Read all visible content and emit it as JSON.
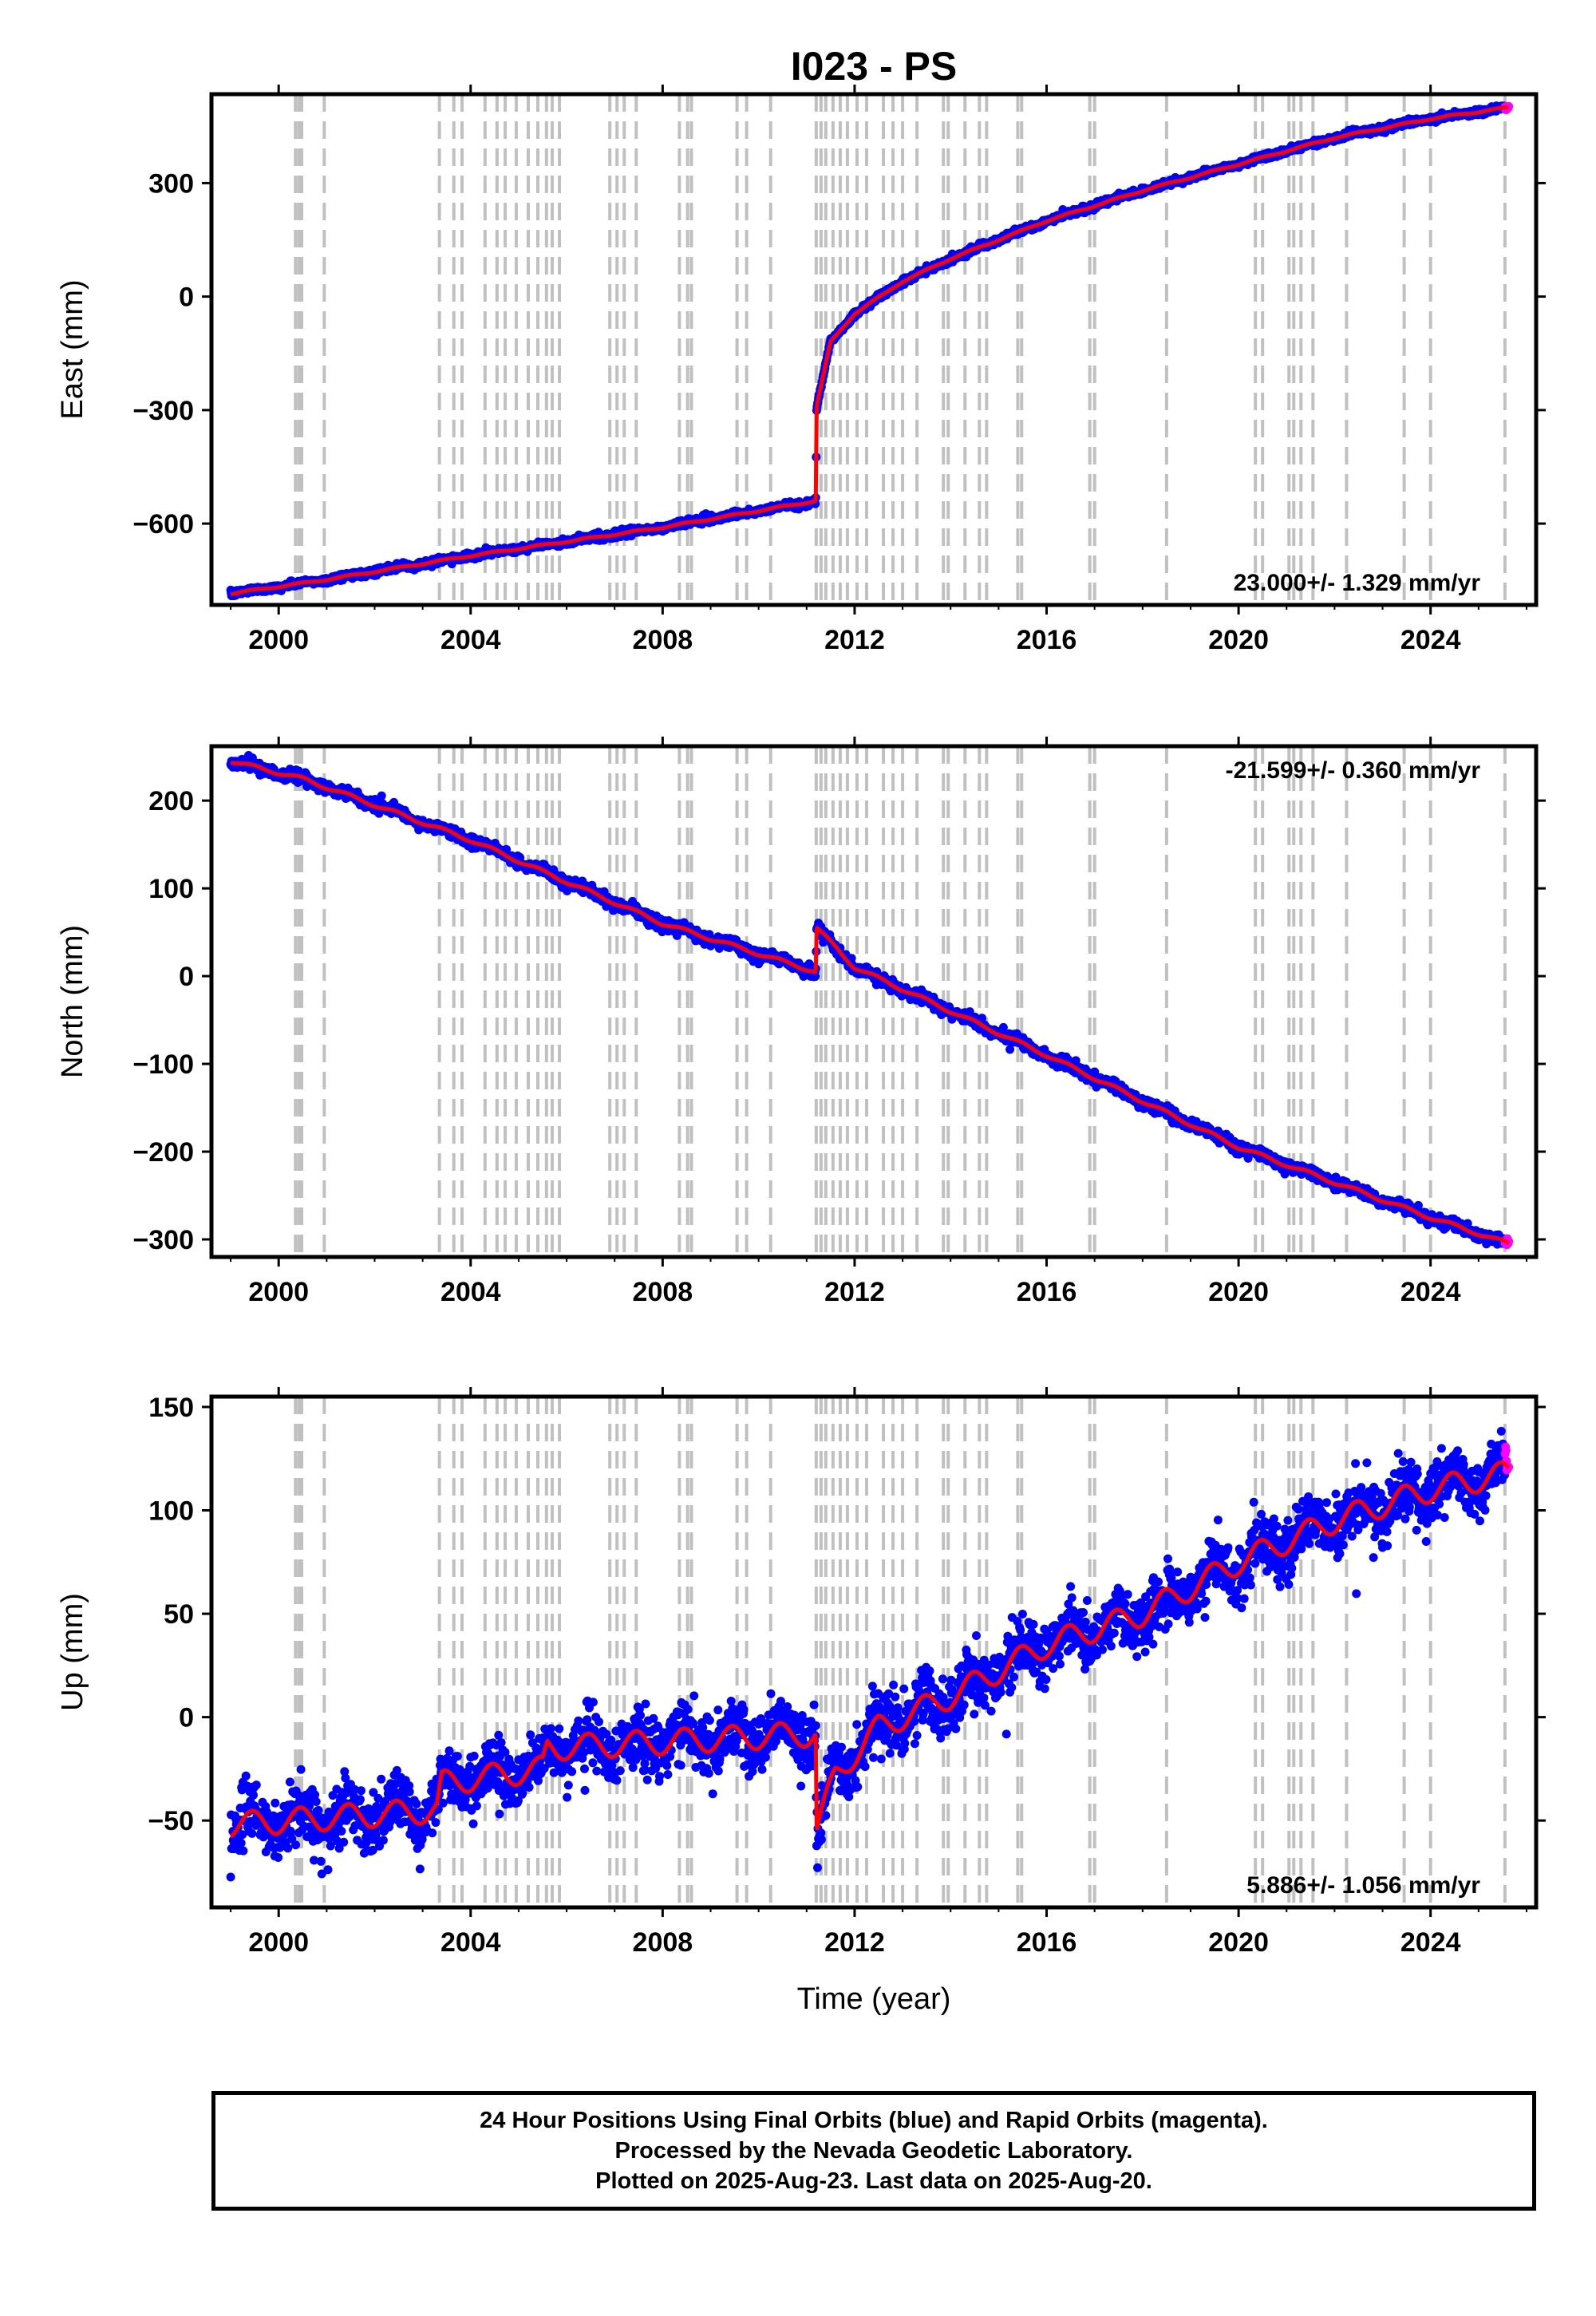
{
  "title": "I023 - PS",
  "x_axis_label": "Time (year)",
  "footer": {
    "line1": "24 Hour Positions Using Final Orbits (blue) and Rapid Orbits (magenta).",
    "line2": "Processed by the Nevada Geodetic Laboratory.",
    "line3": "Plotted on 2025-Aug-23. Last data on 2025-Aug-20."
  },
  "colors": {
    "final_orbits": "#0000ff",
    "rapid_orbits": "#ff00ff",
    "model": "#ff0000",
    "event_lines": "#c0c0c0"
  },
  "chart_data": [
    {
      "type": "scatter",
      "component": "east",
      "ylabel": "East (mm)",
      "xlim": [
        1998.6,
        2026.2
      ],
      "ylim": [
        -815,
        535
      ],
      "xticks": [
        2000,
        2004,
        2008,
        2012,
        2016,
        2020,
        2024
      ],
      "yticks": [
        -600,
        -300,
        0,
        300
      ],
      "rate_label": "23.000+/- 1.329 mm/yr",
      "rate_position": "bottom-right",
      "x_start": 1999.0,
      "x_end": 2025.63,
      "jump_year": 2011.19,
      "knots": [
        [
          1999.0,
          -785
        ],
        [
          2000.9,
          -750
        ],
        [
          2004.0,
          -685
        ],
        [
          2008.0,
          -610
        ],
        [
          2011.19,
          -540
        ],
        [
          2011.21,
          -290
        ],
        [
          2011.5,
          -120
        ],
        [
          2012.0,
          -45
        ],
        [
          2013.0,
          40
        ],
        [
          2014.0,
          100
        ],
        [
          2016.0,
          200
        ],
        [
          2018.0,
          280
        ],
        [
          2020.0,
          350
        ],
        [
          2022.0,
          420
        ],
        [
          2024.0,
          470
        ],
        [
          2025.63,
          500
        ]
      ],
      "noise": 4,
      "seasonal": 2
    },
    {
      "type": "scatter",
      "component": "north",
      "ylabel": "North (mm)",
      "xlim": [
        1998.6,
        2026.2
      ],
      "ylim": [
        -320,
        262
      ],
      "xticks": [
        2000,
        2004,
        2008,
        2012,
        2016,
        2020,
        2024
      ],
      "yticks": [
        -300,
        -200,
        -100,
        0,
        100,
        200
      ],
      "rate_label": "-21.599+/- 0.360 mm/yr",
      "rate_position": "top-right",
      "x_start": 1999.0,
      "x_end": 2025.63,
      "jump_year": 2011.19,
      "knots": [
        [
          1999.0,
          245
        ],
        [
          2000.5,
          225
        ],
        [
          2004.0,
          155
        ],
        [
          2008.0,
          60
        ],
        [
          2011.19,
          5
        ],
        [
          2011.21,
          55
        ],
        [
          2012.0,
          10
        ],
        [
          2016.0,
          -90
        ],
        [
          2020.0,
          -195
        ],
        [
          2024.0,
          -275
        ],
        [
          2025.63,
          -305
        ]
      ],
      "noise": 3,
      "seasonal": 2
    },
    {
      "type": "scatter",
      "component": "up",
      "ylabel": "Up (mm)",
      "xlim": [
        1998.6,
        2026.2
      ],
      "ylim": [
        -92,
        155
      ],
      "xticks": [
        2000,
        2004,
        2008,
        2012,
        2016,
        2020,
        2024
      ],
      "yticks": [
        -50,
        0,
        50,
        100,
        150
      ],
      "rate_label": "5.886+/- 1.056 mm/yr",
      "rate_position": "bottom-right",
      "x_start": 1999.0,
      "x_end": 2025.63,
      "jump_year": 2011.19,
      "knots": [
        [
          1999.0,
          -52
        ],
        [
          2003.3,
          -45
        ],
        [
          2003.4,
          -32
        ],
        [
          2005.5,
          -25
        ],
        [
          2005.6,
          -15
        ],
        [
          2011.19,
          -8
        ],
        [
          2011.21,
          -55
        ],
        [
          2011.6,
          -28
        ],
        [
          2012.5,
          -5
        ],
        [
          2014.0,
          10
        ],
        [
          2016.0,
          35
        ],
        [
          2018.0,
          50
        ],
        [
          2020.0,
          75
        ],
        [
          2022.0,
          95
        ],
        [
          2024.0,
          110
        ],
        [
          2025.63,
          118
        ]
      ],
      "noise": 7,
      "seasonal": 6
    }
  ],
  "event_years": [
    2000.35,
    2000.42,
    2000.48,
    2000.95,
    2003.35,
    2003.65,
    2003.82,
    2004.3,
    2004.55,
    2004.72,
    2004.95,
    2005.2,
    2005.4,
    2005.58,
    2005.7,
    2005.85,
    2006.9,
    2007.05,
    2007.2,
    2007.45,
    2008.35,
    2008.52,
    2008.6,
    2009.55,
    2009.75,
    2010.25,
    2011.2,
    2011.3,
    2011.4,
    2011.55,
    2011.7,
    2011.85,
    2012.05,
    2012.25,
    2012.6,
    2012.8,
    2013.0,
    2013.3,
    2013.85,
    2013.95,
    2014.3,
    2014.6,
    2014.75,
    2015.4,
    2015.48,
    2016.9,
    2017.0,
    2018.5,
    2020.35,
    2020.5,
    2021.05,
    2021.15,
    2021.3,
    2021.55,
    2022.25,
    2023.45,
    2024.0,
    2025.55
  ]
}
